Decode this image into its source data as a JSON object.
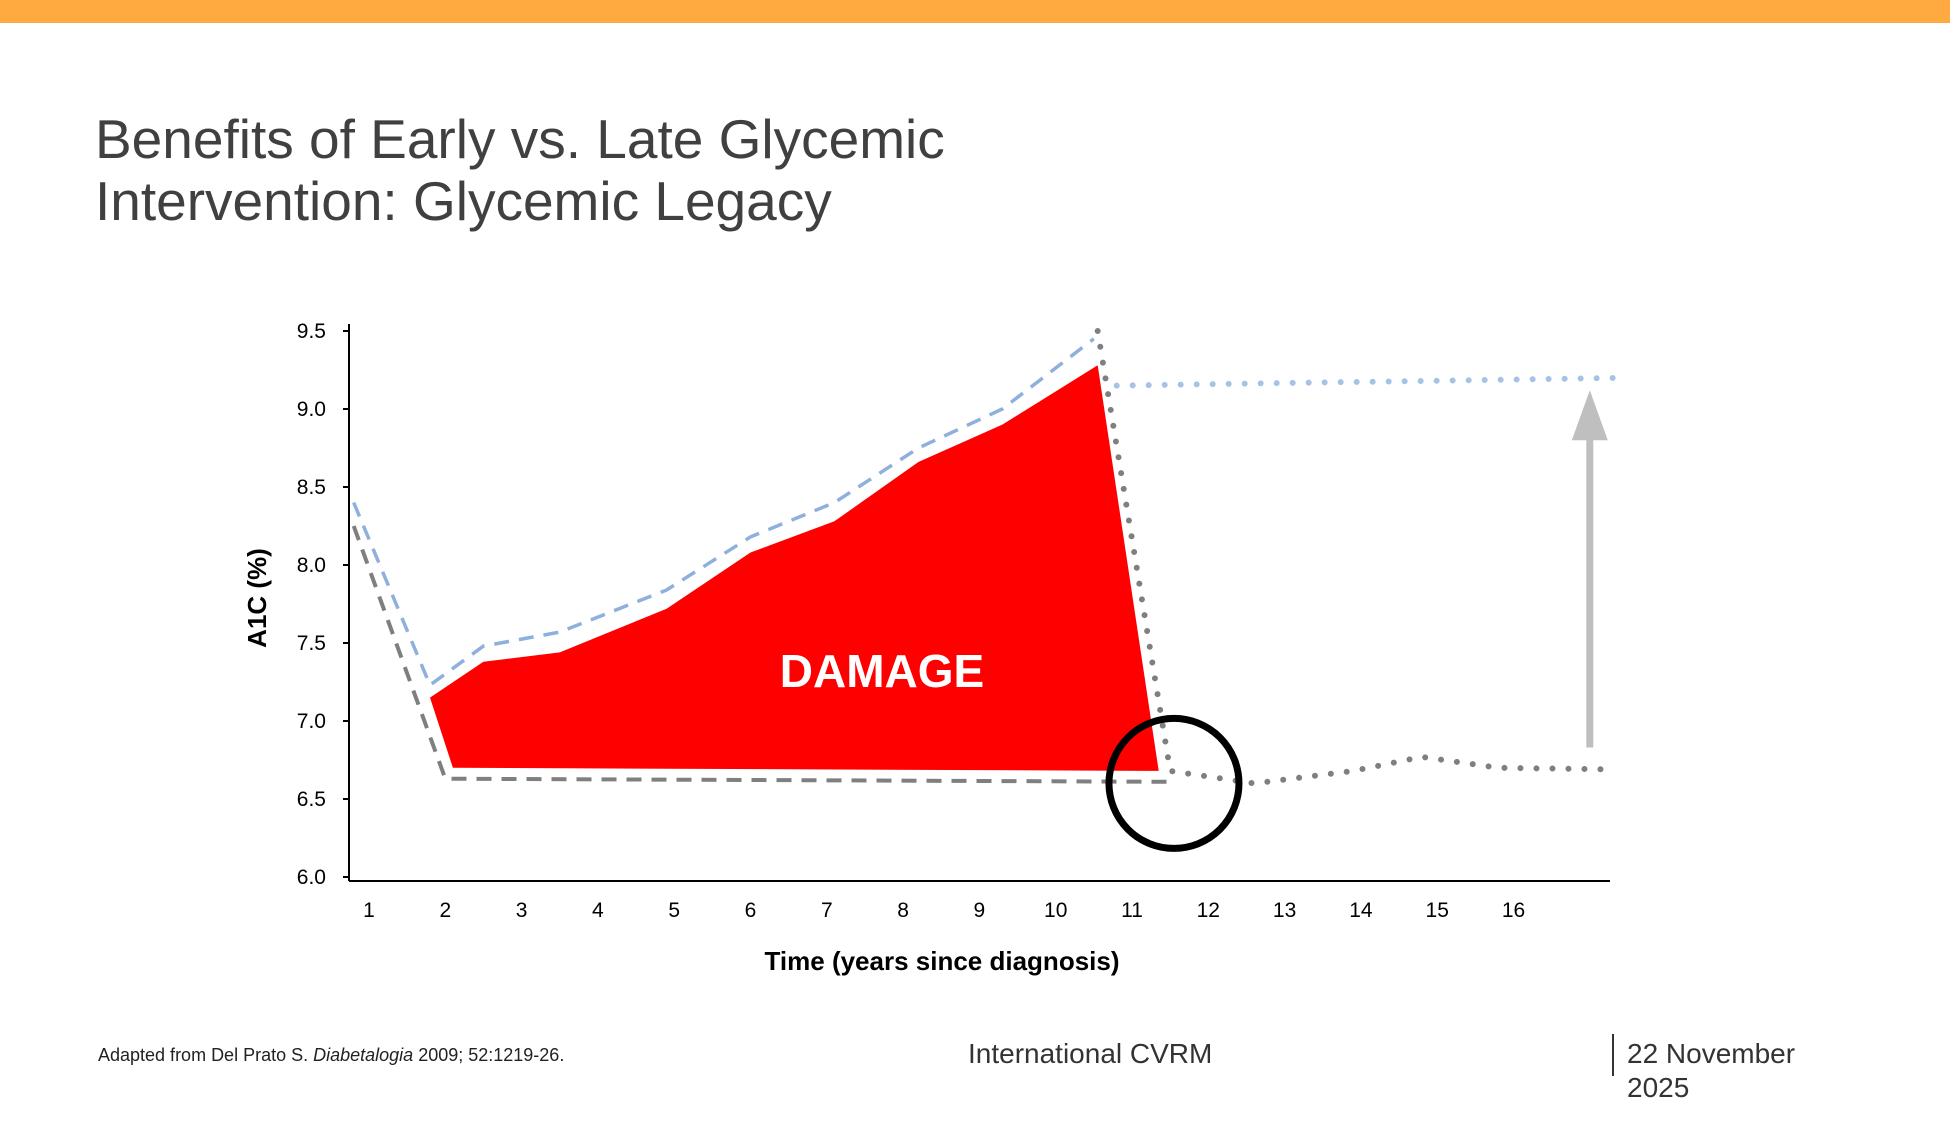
{
  "slide": {
    "accent_color": "#FFAA40",
    "title_line1": "Benefits of Early vs. Late Glycemic",
    "title_line2": "Intervention: Glycemic Legacy"
  },
  "chart_data": {
    "type": "line",
    "title": "",
    "xlabel": "Time (years since diagnosis)",
    "ylabel": "A1C (%)",
    "xlim": [
      0.75,
      17.5
    ],
    "ylim": [
      6.0,
      9.5
    ],
    "x_ticks": [
      1,
      2,
      3,
      4,
      5,
      6,
      7,
      8,
      9,
      10,
      11,
      12,
      13,
      14,
      15,
      16
    ],
    "y_ticks": [
      "6.0",
      "6.5",
      "7.0",
      "7.5",
      "8.0",
      "8.5",
      "9.0",
      "9.5"
    ],
    "grid": false,
    "legend": "none",
    "annotation": "DAMAGE",
    "series": [
      {
        "style": "dashed",
        "color": "#8FB0DC",
        "points": [
          [
            0.8,
            8.4
          ],
          [
            1.8,
            7.23
          ],
          [
            2.5,
            7.48
          ],
          [
            3.5,
            7.57
          ],
          [
            4.9,
            7.84
          ],
          [
            6.0,
            8.18
          ],
          [
            7.1,
            8.4
          ],
          [
            8.2,
            8.75
          ],
          [
            9.3,
            9.0
          ],
          [
            10.5,
            9.45
          ]
        ]
      },
      {
        "style": "dotted",
        "color": "#A6C2E6",
        "points": [
          [
            10.8,
            9.15
          ],
          [
            17.5,
            9.2
          ]
        ]
      },
      {
        "style": "dashed",
        "color": "#7F7F7F",
        "points": [
          [
            0.8,
            8.25
          ],
          [
            2.0,
            6.63
          ],
          [
            11.5,
            6.61
          ]
        ]
      },
      {
        "style": "dotted",
        "color": "#7F7F7F",
        "points": [
          [
            10.55,
            9.5
          ],
          [
            11.5,
            6.68
          ],
          [
            12.6,
            6.6
          ],
          [
            13.9,
            6.68
          ],
          [
            14.8,
            6.77
          ],
          [
            15.8,
            6.7
          ],
          [
            17.3,
            6.69
          ]
        ]
      }
    ],
    "damage_area": {
      "color": "#FF0000",
      "upper": [
        [
          1.8,
          7.15
        ],
        [
          2.5,
          7.38
        ],
        [
          3.5,
          7.44
        ],
        [
          4.9,
          7.72
        ],
        [
          6.0,
          8.08
        ],
        [
          7.1,
          8.28
        ],
        [
          8.2,
          8.66
        ],
        [
          9.3,
          8.9
        ],
        [
          10.55,
          9.28
        ],
        [
          11.35,
          6.68
        ]
      ],
      "lower": [
        [
          2.1,
          6.7
        ],
        [
          11.35,
          6.68
        ]
      ]
    },
    "circle_center": [
      11.55,
      6.6
    ],
    "arrow": {
      "x": 17.0,
      "from": 6.83,
      "to": 9.12,
      "color": "#BFBFBF"
    }
  },
  "footer": {
    "citation_prefix": "Adapted from Del Prato S. ",
    "citation_journal": "Diabetalogia",
    "citation_suffix": " 2009; 52:1219-26.",
    "organization": "International CVRM",
    "date": "22 November 2025"
  }
}
